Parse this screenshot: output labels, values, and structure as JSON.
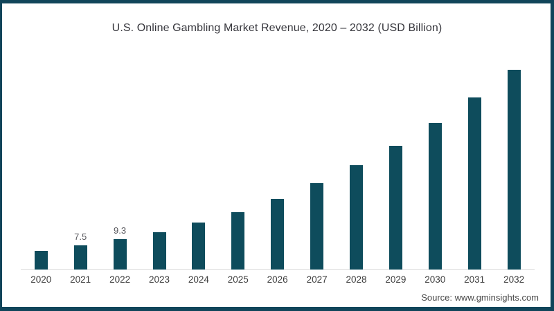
{
  "page": {
    "background": "#ffffff",
    "frame_border_color": "#11455a"
  },
  "header": {
    "title": "U.S. Online Gambling Market Revenue, 2020 – 2032 (USD Billion)"
  },
  "footer": {
    "source": "Source: www.gminsights.com"
  },
  "chart_data": {
    "type": "bar",
    "title": "U.S. Online Gambling Market Revenue, 2020 – 2032 (USD Billion)",
    "unit": "USD Billion",
    "categories": [
      "2020",
      "2021",
      "2022",
      "2023",
      "2024",
      "2025",
      "2026",
      "2027",
      "2028",
      "2029",
      "2030",
      "2031",
      "2032"
    ],
    "values": [
      5.8,
      7.5,
      9.3,
      11.6,
      14.4,
      17.6,
      21.7,
      26.6,
      32.2,
      38.2,
      45.3,
      53.1,
      61.6
    ],
    "labels": [
      "",
      "7.5",
      "9.3",
      "",
      "",
      "",
      "",
      "",
      "",
      "",
      "",
      "",
      ""
    ],
    "bar_color": "#0e4c5c",
    "axis_line_color": "#d9d9d9",
    "xlabel": "",
    "ylabel": "",
    "ylim": [
      0,
      65
    ],
    "grid": false,
    "legend": false,
    "legend_position": "none",
    "y_axis_ticks_visible": false
  }
}
